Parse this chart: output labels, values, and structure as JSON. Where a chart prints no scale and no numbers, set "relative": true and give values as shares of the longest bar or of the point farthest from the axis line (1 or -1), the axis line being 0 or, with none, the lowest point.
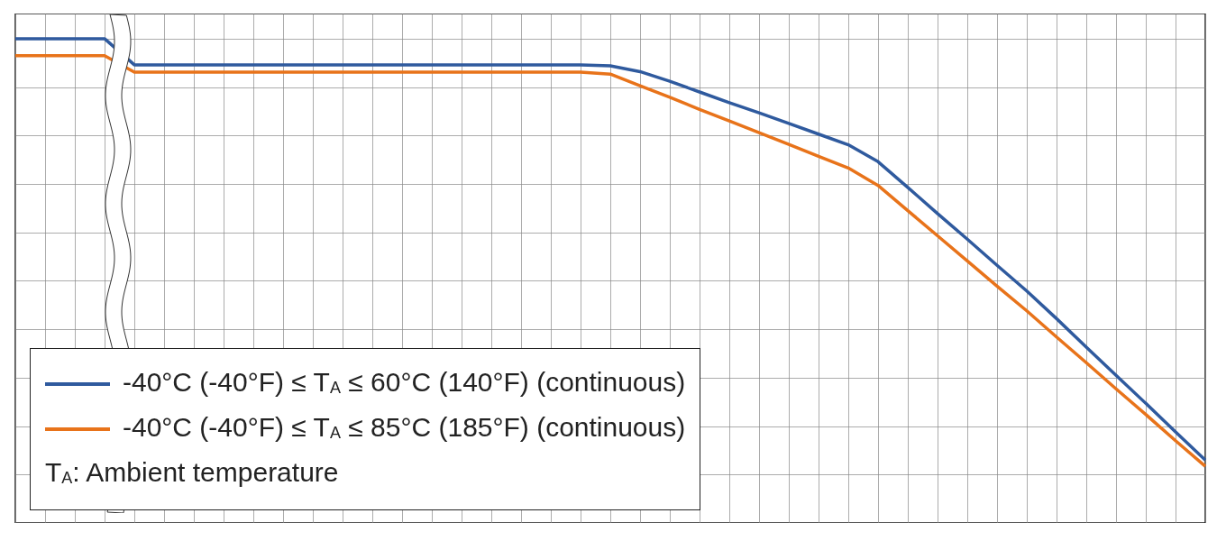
{
  "chart_data": {
    "type": "line",
    "relative": true,
    "grid": true,
    "legend": "bottom left",
    "line_style": "solid",
    "marker": "none",
    "categories": [
      null,
      null,
      null,
      null,
      null,
      null,
      null,
      null,
      null,
      null,
      null,
      null,
      null,
      null,
      null,
      null,
      null,
      null,
      null,
      null,
      null,
      null,
      null,
      null,
      null,
      null,
      null,
      null,
      null,
      null,
      null,
      null,
      null,
      null,
      null,
      null,
      null,
      null,
      null,
      null,
      null
    ],
    "series": [
      {
        "name": "-40°C (-40°F) ≤ T$_{A}$ ≤ 60°C (140°F) (continuous)",
        "color": "#2f5a9e",
        "values": [
          1.0,
          1.0,
          1.0,
          1.0,
          0.946,
          0.946,
          0.946,
          0.946,
          0.946,
          0.946,
          0.946,
          0.946,
          0.946,
          0.946,
          0.946,
          0.946,
          0.946,
          0.946,
          0.946,
          0.946,
          0.944,
          0.932,
          0.912,
          0.89,
          0.868,
          0.847,
          0.825,
          0.803,
          0.781,
          0.746,
          0.693,
          0.639,
          0.586,
          0.532,
          0.479,
          0.422,
          0.363,
          0.305,
          0.247,
          0.188,
          0.13
        ]
      },
      {
        "name": "-40°C (-40°F) ≤ T$_{A}$ ≤ 85°C (185°F) (continuous)",
        "color": "#e8731a",
        "values": [
          0.965,
          0.965,
          0.965,
          0.965,
          0.931,
          0.931,
          0.931,
          0.931,
          0.931,
          0.931,
          0.931,
          0.931,
          0.931,
          0.931,
          0.931,
          0.931,
          0.931,
          0.931,
          0.931,
          0.931,
          0.927,
          0.903,
          0.879,
          0.854,
          0.83,
          0.806,
          0.782,
          0.757,
          0.733,
          0.697,
          0.645,
          0.593,
          0.541,
          0.489,
          0.438,
          0.384,
          0.331,
          0.277,
          0.224,
          0.17,
          0.117
        ]
      }
    ],
    "annotations": [
      "T$_{A}$: Ambient temperature"
    ]
  }
}
